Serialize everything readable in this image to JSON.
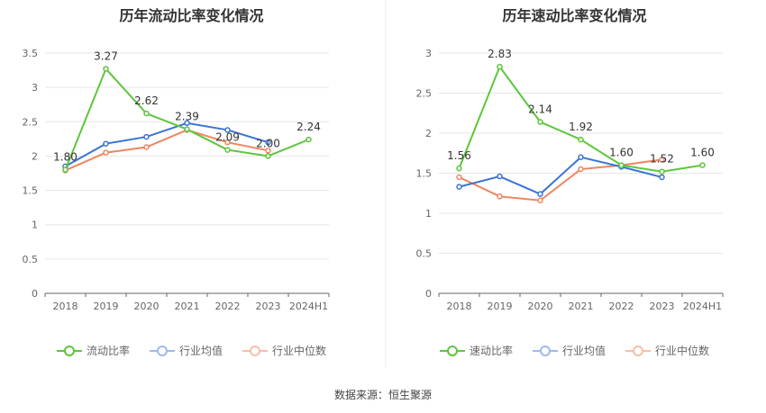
{
  "source": "数据来源：恒生聚源",
  "colors": {
    "green": "#5cc63a",
    "blue": "#3b74d6",
    "orange": "#f0845f",
    "axis": "#999999",
    "grid": "#e6e6e6"
  },
  "chart_data": [
    {
      "type": "line",
      "title": "历年流动比率变化情况",
      "categories": [
        "2018",
        "2019",
        "2020",
        "2021",
        "2022",
        "2023",
        "2024H1"
      ],
      "ylim": [
        0,
        3.5
      ],
      "yticks": [
        "0",
        "0.5",
        "1",
        "1.5",
        "2",
        "2.5",
        "3",
        "3.5"
      ],
      "grid": true,
      "legend_position": "bottom",
      "series": [
        {
          "name": "流动比率",
          "color": "#5cc63a",
          "values": [
            1.8,
            3.27,
            2.62,
            2.39,
            2.09,
            2.0,
            2.24
          ],
          "labels": [
            "1.80",
            "3.27",
            "2.62",
            "2.39",
            "2.09",
            "2.00",
            "2.24"
          ]
        },
        {
          "name": "行业均值",
          "color": "#3b74d6",
          "values": [
            1.85,
            2.18,
            2.28,
            2.48,
            2.38,
            2.2,
            null
          ]
        },
        {
          "name": "行业中位数",
          "color": "#f0845f",
          "values": [
            1.79,
            2.05,
            2.13,
            2.38,
            2.2,
            2.08,
            null
          ]
        }
      ]
    },
    {
      "type": "line",
      "title": "历年速动比率变化情况",
      "categories": [
        "2018",
        "2019",
        "2020",
        "2021",
        "2022",
        "2023",
        "2024H1"
      ],
      "ylim": [
        0,
        3
      ],
      "yticks": [
        "0",
        "0.5",
        "1",
        "1.5",
        "2",
        "2.5",
        "3"
      ],
      "grid": true,
      "legend_position": "bottom",
      "series": [
        {
          "name": "速动比率",
          "color": "#5cc63a",
          "values": [
            1.56,
            2.83,
            2.14,
            1.92,
            1.6,
            1.52,
            1.6
          ],
          "labels": [
            "1.56",
            "2.83",
            "2.14",
            "1.92",
            "1.60",
            "1.52",
            "1.60"
          ]
        },
        {
          "name": "行业均值",
          "color": "#3b74d6",
          "values": [
            1.33,
            1.46,
            1.24,
            1.7,
            1.58,
            1.45,
            null
          ]
        },
        {
          "name": "行业中位数",
          "color": "#f0845f",
          "values": [
            1.45,
            1.21,
            1.16,
            1.55,
            1.6,
            1.67,
            null
          ]
        }
      ]
    }
  ]
}
